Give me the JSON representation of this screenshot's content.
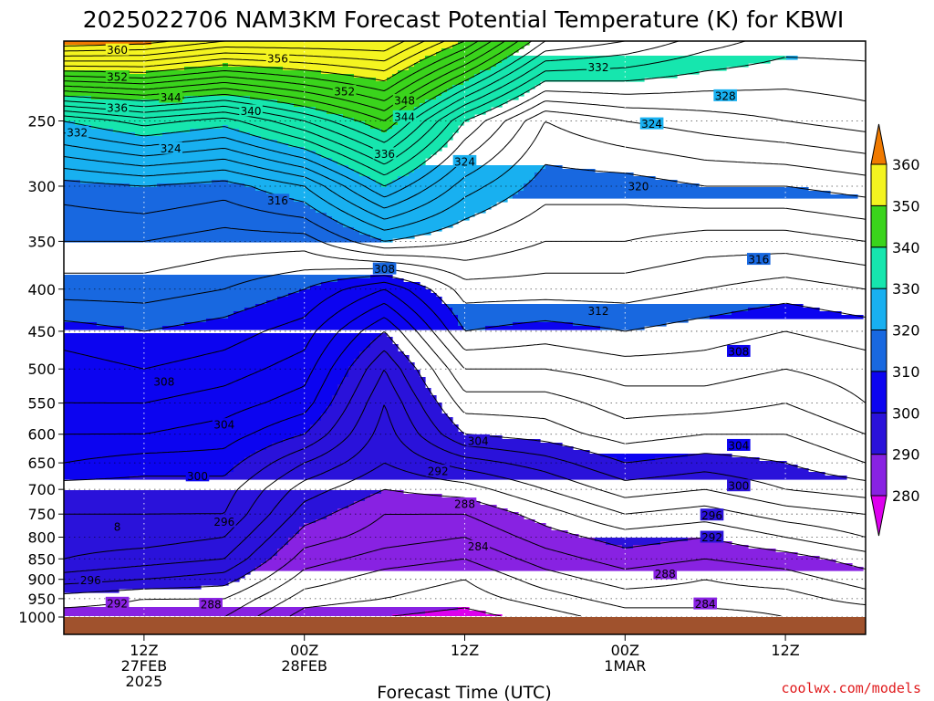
{
  "title": "2025022706 NAM3KM Forecast Potential Temperature (K) for KBWI",
  "credit": "coolwx.com/models",
  "chart_data": {
    "type": "heatmap",
    "title": "2025022706 NAM3KM Forecast Potential Temperature (K) for KBWI",
    "xlabel": "Forecast Time (UTC)",
    "ylabel": "",
    "y_scale": "log-pressure (inverted)",
    "ylim": [
      1000,
      200
    ],
    "xlim_hours": [
      0,
      60
    ],
    "grid": "dotted at tick positions",
    "y_ticks": [
      "250",
      "300",
      "350",
      "400",
      "450",
      "500",
      "550",
      "600",
      "650",
      "700",
      "750",
      "800",
      "850",
      "900",
      "950",
      "1000"
    ],
    "x_ticks": [
      {
        "hour": 6,
        "lines": [
          "12Z",
          "27FEB",
          "2025"
        ]
      },
      {
        "hour": 18,
        "lines": [
          "00Z",
          "28FEB"
        ]
      },
      {
        "hour": 30,
        "lines": [
          "12Z"
        ]
      },
      {
        "hour": 42,
        "lines": [
          "00Z",
          "1MAR"
        ]
      },
      {
        "hour": 54,
        "lines": [
          "12Z"
        ]
      }
    ],
    "colorbar": {
      "levels": [
        280,
        290,
        300,
        310,
        320,
        330,
        340,
        350,
        360
      ],
      "labels": [
        "280",
        "290",
        "300",
        "310",
        "320",
        "330",
        "340",
        "350",
        "360"
      ],
      "colors": [
        "#dd00ee",
        "#8822e2",
        "#2a12da",
        "#0c04f0",
        "#1868e0",
        "#18b0f0",
        "#16e6ae",
        "#3ad41c",
        "#f4f420",
        "#f8b020",
        "#f07a00"
      ],
      "extend": "both"
    },
    "contour_interval_K": 2,
    "profiles": [
      {
        "hour": 0,
        "theta_levels": {
          "1000": 287,
          "950": 289,
          "900": 293,
          "850": 296,
          "800": 297,
          "750": 298,
          "700": 299,
          "650": 302,
          "600": 304,
          "550": 306,
          "500": 307,
          "450": 309,
          "400": 313,
          "350": 316,
          "300": 319,
          "250": 330,
          "200": 362
        }
      },
      {
        "hour": 6,
        "theta_levels": {
          "1000": 287,
          "950": 288,
          "900": 292,
          "850": 295,
          "800": 297,
          "750": 298,
          "700": 299,
          "650": 301,
          "600": 304,
          "550": 306,
          "500": 308,
          "450": 310,
          "400": 313,
          "350": 316,
          "300": 320,
          "250": 333,
          "200": 361
        }
      },
      {
        "hour": 12,
        "theta_levels": {
          "1000": 286,
          "950": 288,
          "900": 291,
          "850": 294,
          "800": 296,
          "750": 298,
          "700": 299,
          "650": 301,
          "600": 303,
          "550": 305,
          "500": 307,
          "450": 309,
          "400": 312,
          "350": 315,
          "300": 319,
          "250": 331,
          "200": 358
        }
      },
      {
        "hour": 18,
        "theta_levels": {
          "1000": 281,
          "950": 283,
          "900": 285,
          "850": 287,
          "800": 289,
          "750": 291,
          "700": 293,
          "650": 296,
          "600": 300,
          "550": 303,
          "500": 305,
          "450": 307,
          "400": 310,
          "350": 315,
          "300": 322,
          "250": 336,
          "200": 358
        }
      },
      {
        "hour": 24,
        "theta_levels": {
          "1000": 280,
          "950": 282,
          "900": 283,
          "850": 285,
          "800": 287,
          "750": 288,
          "700": 290,
          "650": 292,
          "600": 293,
          "550": 294,
          "500": 296,
          "450": 300,
          "400": 306,
          "350": 320,
          "300": 330,
          "250": 342,
          "200": 358
        }
      },
      {
        "hour": 30,
        "theta_levels": {
          "1000": 279,
          "950": 281,
          "900": 282,
          "850": 284,
          "800": 286,
          "750": 288,
          "700": 291,
          "650": 295,
          "600": 300,
          "550": 303,
          "500": 306,
          "450": 310,
          "400": 313,
          "350": 318,
          "300": 323,
          "250": 330,
          "200": 350
        }
      },
      {
        "hour": 36,
        "theta_levels": {
          "1000": 281,
          "950": 283,
          "900": 285,
          "850": 287,
          "800": 289,
          "750": 291,
          "700": 294,
          "650": 297,
          "600": 301,
          "550": 303,
          "500": 306,
          "450": 309,
          "400": 313,
          "350": 316,
          "300": 319,
          "250": 322,
          "200": 338
        }
      },
      {
        "hour": 42,
        "theta_levels": {
          "1000": 283,
          "950": 285,
          "900": 287,
          "850": 289,
          "800": 291,
          "750": 294,
          "700": 297,
          "650": 300,
          "600": 303,
          "550": 305,
          "500": 307,
          "450": 310,
          "400": 313,
          "350": 316,
          "300": 319,
          "250": 324,
          "200": 336
        }
      },
      {
        "hour": 48,
        "theta_levels": {
          "1000": 283,
          "950": 285,
          "900": 286,
          "850": 288,
          "800": 290,
          "750": 293,
          "700": 296,
          "650": 299,
          "600": 302,
          "550": 305,
          "500": 307,
          "450": 309,
          "400": 312,
          "350": 315,
          "300": 320,
          "250": 325,
          "200": 333
        }
      },
      {
        "hour": 54,
        "theta_levels": {
          "1000": 284,
          "950": 285,
          "900": 287,
          "850": 289,
          "800": 292,
          "750": 295,
          "700": 298,
          "650": 300,
          "600": 302,
          "550": 304,
          "500": 306,
          "450": 308,
          "400": 311,
          "350": 315,
          "300": 320,
          "250": 326,
          "200": 331
        }
      },
      {
        "hour": 60,
        "theta_levels": {
          "1000": 284,
          "950": 287,
          "900": 289,
          "850": 291,
          "800": 294,
          "750": 296,
          "700": 299,
          "650": 302,
          "600": 304,
          "550": 306,
          "500": 307,
          "450": 309,
          "400": 312,
          "350": 316,
          "300": 321,
          "250": 327,
          "200": 331
        }
      }
    ],
    "contour_labels": [
      {
        "text": "360",
        "hour": 4.0,
        "p": 205
      },
      {
        "text": "356",
        "hour": 16.0,
        "p": 210
      },
      {
        "text": "352",
        "hour": 4.0,
        "p": 221
      },
      {
        "text": "352",
        "hour": 21.0,
        "p": 230
      },
      {
        "text": "348",
        "hour": 25.5,
        "p": 236
      },
      {
        "text": "344",
        "hour": 8.0,
        "p": 234
      },
      {
        "text": "344",
        "hour": 25.5,
        "p": 247
      },
      {
        "text": "340",
        "hour": 14.0,
        "p": 243
      },
      {
        "text": "336",
        "hour": 4.0,
        "p": 241
      },
      {
        "text": "336",
        "hour": 24.0,
        "p": 274
      },
      {
        "text": "332",
        "hour": 1.0,
        "p": 258
      },
      {
        "text": "332",
        "hour": 40.0,
        "p": 215
      },
      {
        "text": "328",
        "hour": 49.5,
        "p": 233
      },
      {
        "text": "324",
        "hour": 8.0,
        "p": 270
      },
      {
        "text": "324",
        "hour": 30.0,
        "p": 280
      },
      {
        "text": "324",
        "hour": 44.0,
        "p": 252
      },
      {
        "text": "320",
        "hour": 43.0,
        "p": 300
      },
      {
        "text": "316",
        "hour": 16.0,
        "p": 312
      },
      {
        "text": "316",
        "hour": 52.0,
        "p": 368
      },
      {
        "text": "312",
        "hour": 40.0,
        "p": 425
      },
      {
        "text": "308",
        "hour": 24.0,
        "p": 378
      },
      {
        "text": "308",
        "hour": 7.5,
        "p": 518
      },
      {
        "text": "308",
        "hour": 50.5,
        "p": 476
      },
      {
        "text": "304",
        "hour": 12.0,
        "p": 584
      },
      {
        "text": "304",
        "hour": 31.0,
        "p": 611
      },
      {
        "text": "304",
        "hour": 50.5,
        "p": 619
      },
      {
        "text": "300",
        "hour": 10.0,
        "p": 674
      },
      {
        "text": "300",
        "hour": 50.5,
        "p": 693
      },
      {
        "text": "296",
        "hour": 12.0,
        "p": 766
      },
      {
        "text": "296",
        "hour": 48.5,
        "p": 752
      },
      {
        "text": "296",
        "hour": 2.0,
        "p": 902
      },
      {
        "text": "292",
        "hour": 28.0,
        "p": 665
      },
      {
        "text": "292",
        "hour": 48.5,
        "p": 800
      },
      {
        "text": "292",
        "hour": 4.0,
        "p": 962
      },
      {
        "text": "288",
        "hour": 30.0,
        "p": 729
      },
      {
        "text": "288",
        "hour": 45.0,
        "p": 886
      },
      {
        "text": "288",
        "hour": 11.0,
        "p": 965
      },
      {
        "text": "284",
        "hour": 31.0,
        "p": 821
      },
      {
        "text": "284",
        "hour": 48.0,
        "p": 964
      },
      {
        "text": "8",
        "hour": 4.0,
        "p": 777
      }
    ],
    "surface": "below 1000 hPa shaded brown"
  }
}
